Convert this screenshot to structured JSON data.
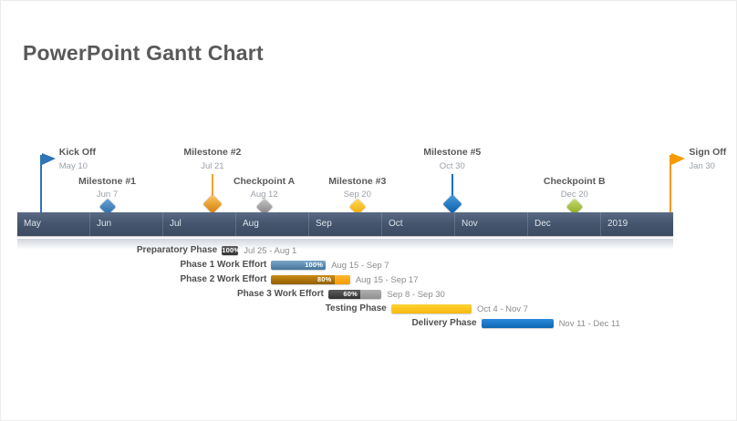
{
  "title": "PowerPoint Gantt Chart",
  "colors": {
    "timeline_band": "#46566e",
    "title_text": "#595959",
    "milestone_name_text": "#595959",
    "milestone_date_text": "#9aa0a8",
    "task_label_text": "#4f4f4f",
    "task_date_text": "#8b8b8b"
  },
  "timeline": {
    "months": [
      "May",
      "Jun",
      "Jul",
      "Aug",
      "Sep",
      "Oct",
      "Nov",
      "Dec",
      "2019"
    ]
  },
  "milestones": [
    {
      "name": "Kick Off",
      "date": "May 10",
      "type": "flag",
      "tier": 1,
      "color": "#2e75b6",
      "grad_from": "#4d94d4",
      "grad_to": "#1b5e9e"
    },
    {
      "name": "Milestone #1",
      "date": "Jun 7",
      "type": "diamond",
      "tier": 2,
      "color": "#3d84c0",
      "grad_from": "#66a3d4",
      "grad_to": "#2a6aa5"
    },
    {
      "name": "Milestone #2",
      "date": "Jul 21",
      "type": "diamond",
      "tier": 1,
      "color": "#f0a22e",
      "grad_from": "#ffc763",
      "grad_to": "#d07d08"
    },
    {
      "name": "Checkpoint A",
      "date": "Aug 12",
      "type": "diamond",
      "tier": 2,
      "color": "#9e9e9e",
      "grad_from": "#c6c6c6",
      "grad_to": "#7d7d7d"
    },
    {
      "name": "Milestone #3",
      "date": "Sep 20",
      "type": "diamond",
      "tier": 2,
      "color": "#fdc116",
      "grad_from": "#ffd95c",
      "grad_to": "#eda800"
    },
    {
      "name": "Milestone #5",
      "date": "Oct 30",
      "type": "diamond",
      "tier": 1,
      "color": "#1372c0",
      "grad_from": "#4a9ade",
      "grad_to": "#0b5ea6"
    },
    {
      "name": "Checkpoint B",
      "date": "Dec 20",
      "type": "diamond",
      "tier": 2,
      "color": "#a3c23b",
      "grad_from": "#c8dd72",
      "grad_to": "#87a61d"
    },
    {
      "name": "Sign Off",
      "date": "Jan 30",
      "type": "flag",
      "tier": 1,
      "color": "#f59b00",
      "grad_from": "#ffb63a",
      "grad_to": "#e08800"
    }
  ],
  "tasks": [
    {
      "name": "Preparatory Phase",
      "start": "Jul 25",
      "end": "Aug 1",
      "dates": "Jul 25 - Aug 1",
      "percent": 100,
      "pct_label": "100%",
      "pct_align": "center",
      "style": "dark"
    },
    {
      "name": "Phase 1 Work Effort",
      "start": "Aug 15",
      "end": "Sep 7",
      "dates": "Aug 15 - Sep 7",
      "percent": 100,
      "pct_label": "100%",
      "pct_align": "right",
      "style": "blue"
    },
    {
      "name": "Phase 2 Work Effort",
      "start": "Aug 15",
      "end": "Sep 17",
      "dates": "Aug 15 - Sep 17",
      "percent": 80,
      "pct_label": "80%",
      "pct_align": "right",
      "style": "orange"
    },
    {
      "name": "Phase 3 Work Effort",
      "start": "Sep 8",
      "end": "Sep 30",
      "dates": "Sep 8 - Sep 30",
      "percent": 60,
      "pct_label": "60%",
      "pct_align": "right",
      "style": "dark"
    },
    {
      "name": "Testing Phase",
      "start": "Oct 4",
      "end": "Nov 7",
      "dates": "Oct 4 - Nov 7",
      "percent": null,
      "pct_label": "",
      "pct_align": "right",
      "style": "yellow"
    },
    {
      "name": "Delivery Phase",
      "start": "Nov 11",
      "end": "Dec 11",
      "dates": "Nov 11 - Dec 11",
      "percent": null,
      "pct_label": "",
      "pct_align": "right",
      "style": "bluebright"
    }
  ],
  "bar_styles": {
    "dark": {
      "base_from": "#b0b0b0",
      "base_to": "#909090",
      "fill_from": "#5e5e5e",
      "fill_to": "#323232"
    },
    "blue": {
      "base_from": "#9dbdd6",
      "base_to": "#7da6c6",
      "fill_from": "#7ca7c9",
      "fill_to": "#44749c"
    },
    "orange": {
      "base_from": "#ffb637",
      "base_to": "#f79a00",
      "fill_from": "#cc8a17",
      "fill_to": "#8f6000"
    },
    "yellow": {
      "base_from": "#ffd234",
      "base_to": "#f7b80c",
      "fill_from": "#ffd234",
      "fill_to": "#f7b80c"
    },
    "bluebright": {
      "base_from": "#2a8ade",
      "base_to": "#0f66b2",
      "fill_from": "#2a8ade",
      "fill_to": "#0f66b2"
    }
  },
  "chart_data": {
    "type": "gantt",
    "title": "PowerPoint Gantt Chart",
    "timeline_axis": [
      "May",
      "Jun",
      "Jul",
      "Aug",
      "Sep",
      "Oct",
      "Nov",
      "Dec",
      "2019"
    ],
    "milestones": [
      {
        "name": "Kick Off",
        "date": "May 10"
      },
      {
        "name": "Milestone #1",
        "date": "Jun 7"
      },
      {
        "name": "Milestone #2",
        "date": "Jul 21"
      },
      {
        "name": "Checkpoint A",
        "date": "Aug 12"
      },
      {
        "name": "Milestone #3",
        "date": "Sep 20"
      },
      {
        "name": "Milestone #5",
        "date": "Oct 30"
      },
      {
        "name": "Checkpoint B",
        "date": "Dec 20"
      },
      {
        "name": "Sign Off",
        "date": "Jan 30"
      }
    ],
    "tasks": [
      {
        "name": "Preparatory Phase",
        "start": "Jul 25",
        "end": "Aug 1",
        "percent_complete": 100
      },
      {
        "name": "Phase 1 Work Effort",
        "start": "Aug 15",
        "end": "Sep 7",
        "percent_complete": 100
      },
      {
        "name": "Phase 2 Work Effort",
        "start": "Aug 15",
        "end": "Sep 17",
        "percent_complete": 80
      },
      {
        "name": "Phase 3 Work Effort",
        "start": "Sep 8",
        "end": "Sep 30",
        "percent_complete": 60
      },
      {
        "name": "Testing Phase",
        "start": "Oct 4",
        "end": "Nov 7",
        "percent_complete": null
      },
      {
        "name": "Delivery Phase",
        "start": "Nov 11",
        "end": "Dec 11",
        "percent_complete": null
      }
    ]
  }
}
